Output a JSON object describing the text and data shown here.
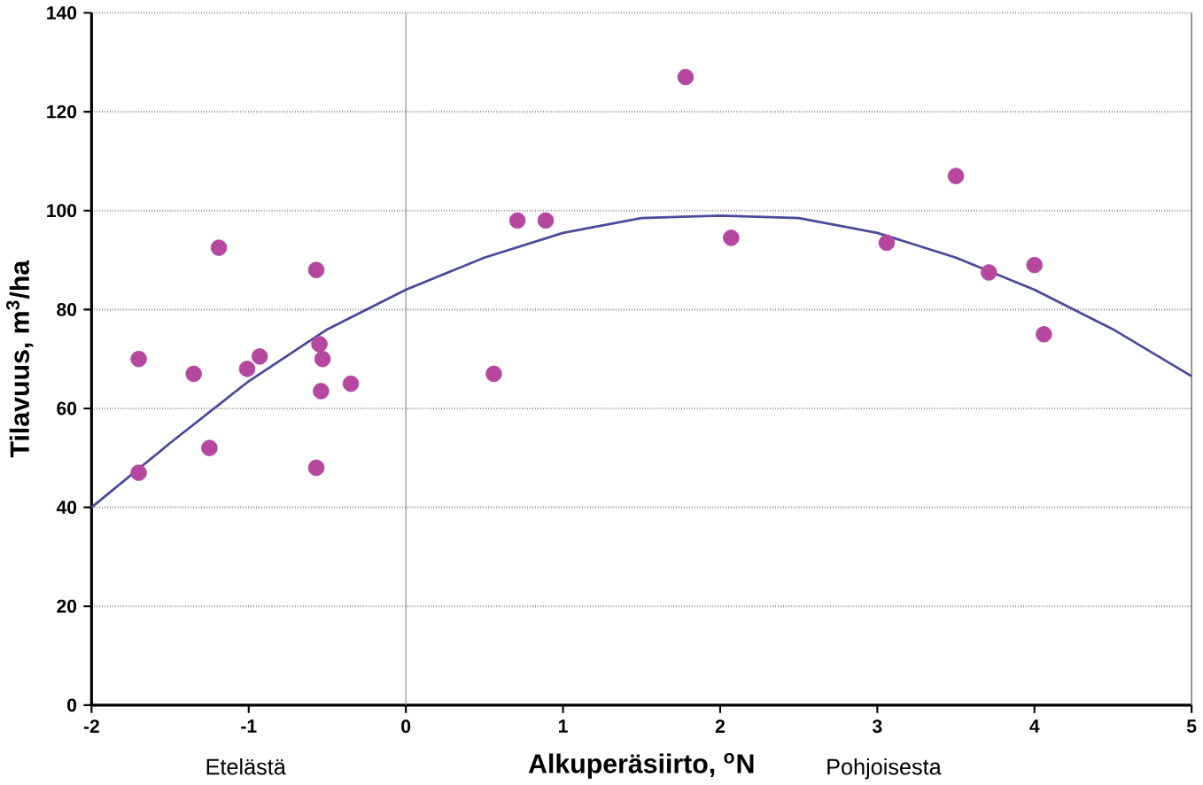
{
  "chart_data": {
    "type": "scatter",
    "xlabel": "Alkuperäsiirto, $^{o}$N",
    "ylabel": "Tilavuus, m$^{3}$/ha",
    "annotations": [
      "Etelästä",
      "Pohjoisesta"
    ],
    "xlim": [
      -2,
      5
    ],
    "ylim": [
      0,
      140
    ],
    "xticks": [
      -2,
      -1,
      0,
      1,
      2,
      3,
      4,
      5
    ],
    "yticks": [
      0,
      20,
      40,
      60,
      80,
      100,
      120,
      140
    ],
    "grid": "y",
    "ref_lines": [
      {
        "axis": "x",
        "value": 0,
        "color": "#999999"
      }
    ],
    "series": [
      {
        "marker": "circle",
        "color": "#b5479f",
        "x": [
          -1.7,
          -1.7,
          -1.35,
          -1.25,
          -1.19,
          -1.01,
          -0.93,
          -0.57,
          -0.55,
          -0.53,
          -0.54,
          -0.35,
          -0.57,
          0.56,
          0.71,
          0.89,
          1.78,
          2.07,
          3.06,
          3.5,
          3.71,
          4.0,
          4.06
        ],
        "values": [
          70,
          47,
          67,
          52,
          92.5,
          68,
          70.5,
          88,
          73,
          70,
          63.5,
          65,
          48,
          67,
          98,
          98,
          127,
          94.5,
          93.5,
          107,
          87.5,
          89,
          75
        ]
      },
      {
        "type": "line",
        "color": "#4a4a9a",
        "x": [
          -2,
          -1.5,
          -1,
          -0.5,
          0,
          0.5,
          1,
          1.5,
          2,
          2.5,
          3,
          3.5,
          4,
          4.5,
          5
        ],
        "values": [
          40,
          53,
          65.5,
          76,
          84,
          90.5,
          95.5,
          98.5,
          99,
          98.5,
          95.5,
          90.5,
          84,
          76,
          66.5
        ]
      }
    ]
  }
}
